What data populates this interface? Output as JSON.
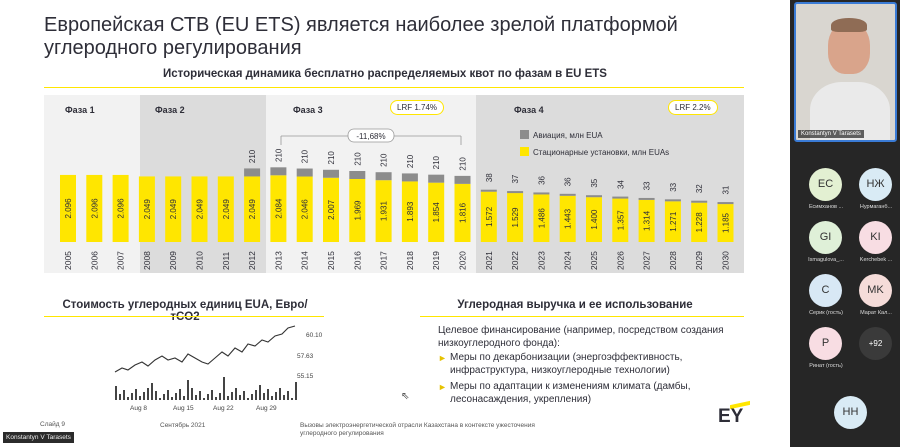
{
  "slide": {
    "title": "Европейская СТВ (EU ETS) является наиболее зрелой платформой углеродного регулирования",
    "chart1_title": "Историческая динамика бесплатно распределяемых квот по фазам в EU ETS",
    "phases": [
      "Фаза 1",
      "Фаза 2",
      "Фаза 3",
      "Фаза 4"
    ],
    "lrf3": "LRF 1.74%",
    "lrf4": "LRF 2.2%",
    "change_label": "-11,68%",
    "chart2_title": "Стоимость углеродных единиц EUA, Евро/тCO2",
    "revenue_title": "Углеродная выручка и ее использование",
    "revenue_intro": "Целевое финансирование (например, посредством создания низкоуглеродного фонда):",
    "bullets": [
      "Меры по декарбонизации (энергоэффективность, инфраструктура, низкоуглеродные технологии)",
      "Меры по адаптации к изменениям климата (дамбы, лесонасаждения, укрепления)"
    ],
    "footer_date": "Сентябрь 2021",
    "footer_text": "Вызовы электроэнергетической отрасли Казахстана в контексте ужесточения углеродного регулирования",
    "slide_num": "Слайд 9",
    "presenter_tag": "Konstantyn V Tarasets",
    "logo": "EY"
  },
  "colors": {
    "accent": "#ffe600",
    "aviation": "#8c8c8c",
    "phase_bg": "#dcdcdc",
    "text": "#2e2e38"
  },
  "chart_data": [
    {
      "type": "bar",
      "categories": [
        "2005",
        "2006",
        "2007",
        "2008",
        "2009",
        "2010",
        "2011",
        "2012",
        "2013",
        "2014",
        "2015",
        "2016",
        "2017",
        "2018",
        "2019",
        "2020",
        "2021",
        "2022",
        "2023",
        "2024",
        "2025",
        "2026",
        "2027",
        "2028",
        "2029",
        "2030"
      ],
      "series": [
        {
          "name": "Стационарные установки, млн EUAs",
          "values": [
            "2.096",
            "2.096",
            "2.096",
            "2.049",
            "2.049",
            "2.049",
            "2.049",
            "2.049",
            "2.084",
            "2.046",
            "2.007",
            "1.969",
            "1.931",
            "1.893",
            "1.854",
            "1.816",
            "1.572",
            "1.529",
            "1.486",
            "1.443",
            "1.400",
            "1.357",
            "1.314",
            "1.271",
            "1.228",
            "1.185"
          ]
        },
        {
          "name": "Авиация, млн EUA",
          "values": [
            null,
            null,
            null,
            null,
            null,
            null,
            null,
            "210",
            "210",
            "210",
            "210",
            "210",
            "210",
            "210",
            "210",
            "210",
            "38",
            "37",
            "36",
            "36",
            "35",
            "34",
            "33",
            "33",
            "32",
            "31"
          ]
        }
      ]
    },
    {
      "type": "bar",
      "x": [
        "Aug 8",
        "Aug 15",
        "Aug 22",
        "Aug 29"
      ],
      "y_ticks": [
        "60.10",
        "57.63",
        "55.15"
      ]
    }
  ],
  "participants": {
    "video_name": "Konstantyn V Tarasets",
    "tiles": [
      {
        "initials": "EC",
        "name": "Есимханов ...",
        "color": "#e3f0d2"
      },
      {
        "initials": "НЖ",
        "name": "Нурмаганб...",
        "color": "#d9ebf5"
      },
      {
        "initials": "GI",
        "name": "Ismagulova_...",
        "color": "#dff0d8"
      },
      {
        "initials": "KI",
        "name": "Kerchebek ...",
        "color": "#f8dde3"
      },
      {
        "initials": "C",
        "name": "Серик (гость)",
        "color": "#d8e8f5"
      },
      {
        "initials": "MK",
        "name": "Марат Кал...",
        "color": "#f5dcd9"
      },
      {
        "initials": "P",
        "name": "Ринат (гость)",
        "color": "#f8dde3"
      },
      {
        "initials": "+92",
        "name": "",
        "color": "#3a3a3a"
      },
      {
        "initials": "HH",
        "name": "",
        "color": "#d9ebf5"
      }
    ]
  }
}
